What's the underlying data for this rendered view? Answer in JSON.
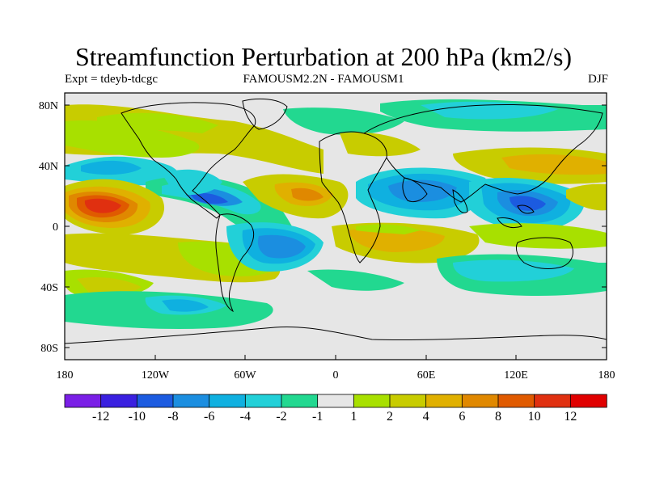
{
  "title": "Streamfunction Perturbation at 200 hPa (km2/s)",
  "left_label": "Expt = tdeyb-tdcgc",
  "center_label": "FAMOUSM2.2N - FAMOUSM1",
  "right_label": "DJF",
  "lat_ticks": [
    "80N",
    "40N",
    "0",
    "40S",
    "80S"
  ],
  "lon_ticks": [
    "180",
    "120W",
    "60W",
    "0",
    "60E",
    "120E",
    "180"
  ],
  "colorbar": {
    "labels": [
      "-12",
      "-10",
      "-8",
      "-6",
      "-4",
      "-2",
      "-1",
      "1",
      "2",
      "4",
      "6",
      "8",
      "10",
      "12"
    ],
    "colors": [
      "#7a1fe6",
      "#3a20e0",
      "#1c5be0",
      "#1b8ee0",
      "#0fb0e0",
      "#22d0d8",
      "#22d890",
      "#e6e6e6",
      "#a8e000",
      "#c8cc00",
      "#e0b000",
      "#e08800",
      "#e05a00",
      "#e03010",
      "#e00000"
    ]
  }
}
